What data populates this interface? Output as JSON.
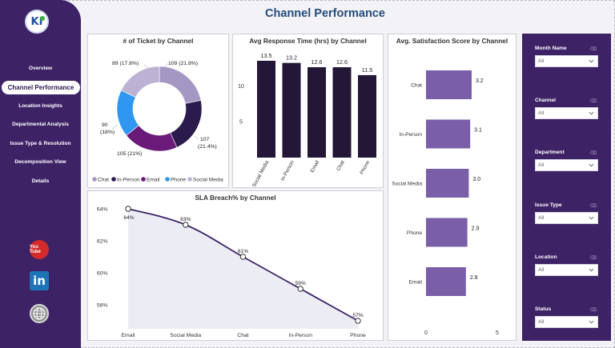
{
  "page": {
    "title": "Channel Performance"
  },
  "sidebar": {
    "logo_text": "KI",
    "items": [
      {
        "label": "Overview"
      },
      {
        "label": "Channel Performance",
        "active": true
      },
      {
        "label": "Location Insights"
      },
      {
        "label": "Departmental Analysis"
      },
      {
        "label": "Issue Type & Resolution"
      },
      {
        "label": "Decomposition View"
      },
      {
        "label": "Details"
      }
    ],
    "social": {
      "youtube_text": "You Tube",
      "linkedin_text": "in"
    }
  },
  "filters": [
    {
      "label": "Month Name",
      "value": "All"
    },
    {
      "label": "Channel",
      "value": "All"
    },
    {
      "label": "Department",
      "value": "All"
    },
    {
      "label": "Issue Type",
      "value": "All"
    },
    {
      "label": "Location",
      "value": "All"
    },
    {
      "label": "Status",
      "value": "All"
    }
  ],
  "chart_data": [
    {
      "type": "pie",
      "variant": "donut",
      "title": "# of Ticket by Channel",
      "categories": [
        "Chat",
        "In-Person",
        "Email",
        "Phone",
        "Social Media"
      ],
      "values": [
        109,
        107,
        105,
        90,
        89
      ],
      "percent_labels": [
        "21.8%",
        "21.4%",
        "21%",
        "18%",
        "17.8%"
      ],
      "colors": [
        "#a597c4",
        "#2b1b4d",
        "#6a1a78",
        "#2f97f0",
        "#bcb2d3"
      ],
      "legend_position": "bottom"
    },
    {
      "type": "bar",
      "title": "Avg Response Time (hrs) by Channel",
      "categories": [
        "Social Media",
        "In-Person",
        "Email",
        "Chat",
        "Phone"
      ],
      "values": [
        13.5,
        13.2,
        12.6,
        12.6,
        11.5
      ],
      "y_ticks": [
        5,
        10
      ],
      "ylim": [
        0,
        14.5
      ],
      "color": "#231636"
    },
    {
      "type": "bar",
      "orientation": "horizontal",
      "title": "Avg. Satisfaction Score by Channel",
      "categories": [
        "Chat",
        "In-Person",
        "Social Media",
        "Phone",
        "Email"
      ],
      "values": [
        3.2,
        3.1,
        3.0,
        2.9,
        2.8
      ],
      "value_labels": [
        "3.2",
        "3.1",
        "3.0",
        "2.9",
        "2.8"
      ],
      "x_ticks": [
        0,
        5
      ],
      "xlim": [
        0,
        5
      ],
      "color": "#7a5fa8"
    },
    {
      "type": "area",
      "title": "SLA Breach% by Channel",
      "categories": [
        "Email",
        "Social Media",
        "Chat",
        "In-Person",
        "Phone"
      ],
      "values": [
        64,
        63,
        61,
        59,
        57
      ],
      "value_labels": [
        "64%",
        "63%",
        "61%",
        "59%",
        "57%"
      ],
      "y_ticks": [
        "58%",
        "60%",
        "62%",
        "64%"
      ],
      "y_tick_values": [
        58,
        60,
        62,
        64
      ],
      "ylim": [
        56.5,
        64.2
      ],
      "line_color": "#3e2266",
      "fill_color": "#ececf5"
    }
  ]
}
